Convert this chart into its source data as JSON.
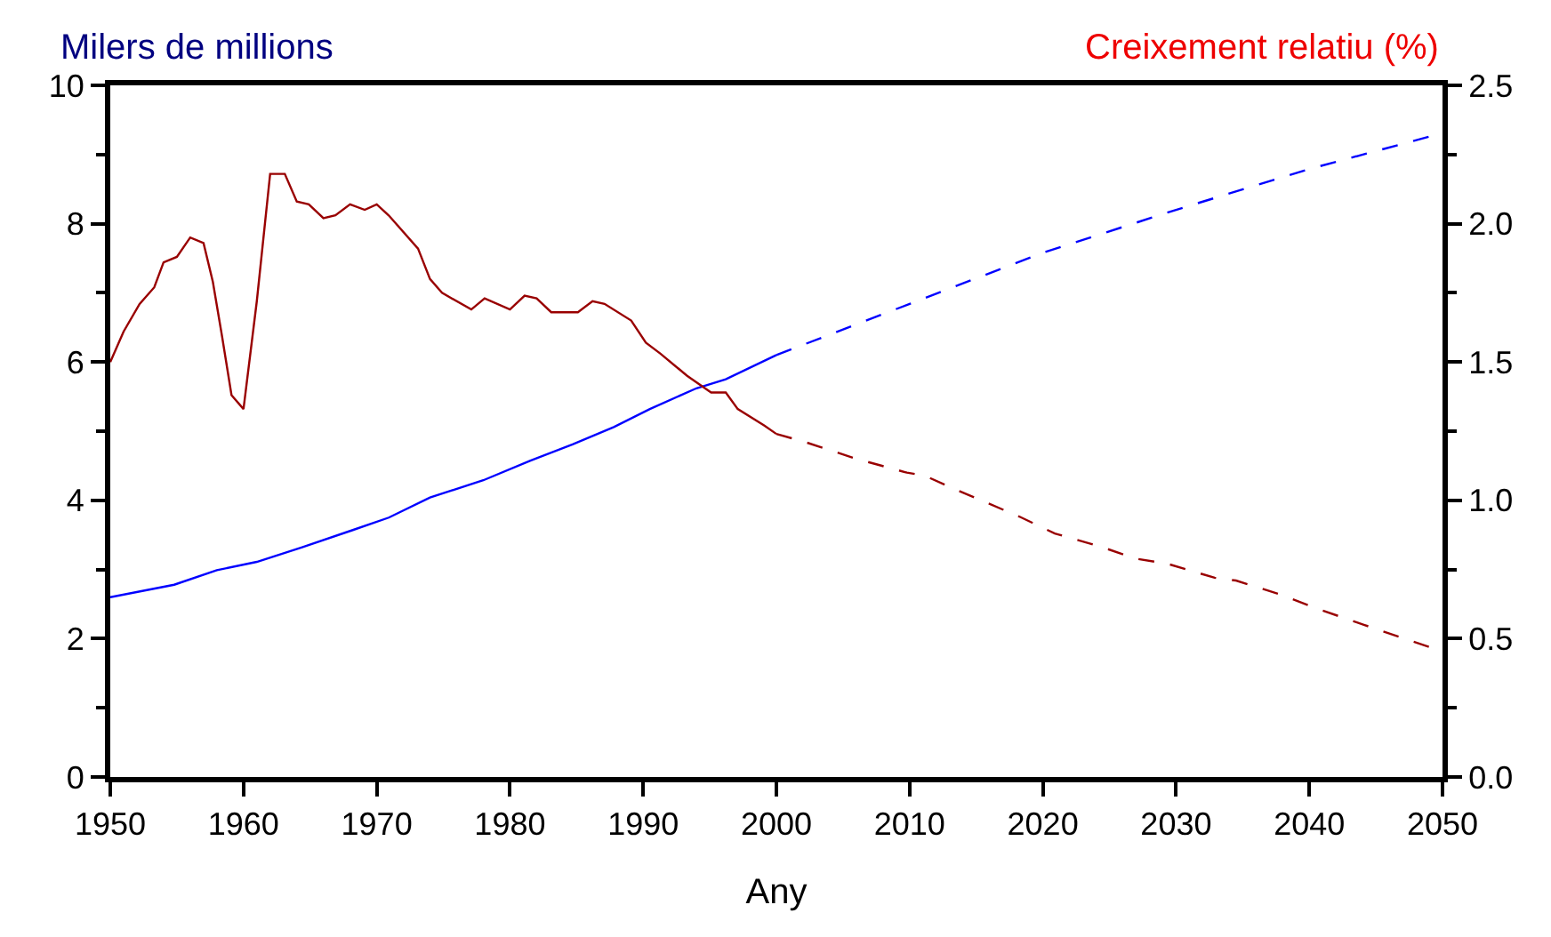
{
  "chart_data": {
    "type": "line",
    "xlabel": "Any",
    "ylabel": "Milers de millions",
    "y2label": "Creixement relatiu (%)",
    "xlim": [
      1950,
      2050
    ],
    "xticks": [
      1950,
      1960,
      1970,
      1980,
      1990,
      2000,
      2010,
      2020,
      2030,
      2040,
      2050
    ],
    "ylim": [
      0,
      10
    ],
    "yticks": [
      0,
      2,
      4,
      6,
      8,
      10
    ],
    "y2lim": [
      0,
      2.5
    ],
    "y2ticks": [
      {
        "value": 0,
        "label": "0.0"
      },
      {
        "value": 0.5,
        "label": "0.5"
      },
      {
        "value": 1,
        "label": "1.0"
      },
      {
        "value": 1.5,
        "label": "1.5"
      },
      {
        "value": 2,
        "label": "2.0"
      },
      {
        "value": 2.5,
        "label": "2.5"
      }
    ],
    "grid": false,
    "marker": "none",
    "series": [
      {
        "color": "#0000ff",
        "line_style": "solid",
        "x": [
          1950,
          1954.8,
          1958,
          1961,
          1964.4,
          1968.2,
          1970.9,
          1974,
          1978,
          1981.5,
          1984.7,
          1987.8,
          1990.5,
          1994,
          1996.2,
          2000
        ],
        "values": [
          2.6,
          2.78,
          2.99,
          3.11,
          3.32,
          3.57,
          3.75,
          4.04,
          4.29,
          4.57,
          4.81,
          5.06,
          5.32,
          5.62,
          5.75,
          6.1
        ]
      },
      {
        "color": "#0000ff",
        "line_style": "dashed",
        "x": [
          2000,
          2010,
          2020,
          2030,
          2040,
          2050
        ],
        "values": [
          6.1,
          6.84,
          7.58,
          8.2,
          8.79,
          9.31
        ]
      },
      {
        "color": "#990000",
        "line_style": "solid",
        "axis": "y2",
        "x": [
          1950,
          1951,
          1952.2,
          1953.3,
          1954,
          1955,
          1956,
          1957,
          1957.7,
          1958.4,
          1959.1,
          1960,
          1961,
          1962,
          1963.1,
          1964,
          1964.9,
          1966,
          1966.9,
          1968,
          1969.1,
          1970,
          1970.9,
          1973.1,
          1974,
          1974.9,
          1977.1,
          1978.1,
          1980,
          1981.1,
          1982,
          1983.1,
          1985.1,
          1986.2,
          1987.1,
          1989.1,
          1990.2,
          1991.3,
          1993.3,
          1995.1,
          1996.2,
          1997.1,
          1999.1,
          2000
        ],
        "values": [
          1.5,
          1.61,
          1.71,
          1.77,
          1.86,
          1.88,
          1.95,
          1.93,
          1.79,
          1.59,
          1.38,
          1.33,
          1.72,
          2.18,
          2.18,
          2.08,
          2.07,
          2.02,
          2.03,
          2.07,
          2.05,
          2.07,
          2.03,
          1.91,
          1.8,
          1.75,
          1.69,
          1.73,
          1.69,
          1.74,
          1.73,
          1.68,
          1.68,
          1.72,
          1.71,
          1.65,
          1.57,
          1.53,
          1.45,
          1.39,
          1.39,
          1.33,
          1.27,
          1.24
        ]
      },
      {
        "color": "#990000",
        "line_style": "dashed",
        "axis": "y2",
        "x": [
          2000,
          2002.2,
          2006,
          2009.8,
          2011.1,
          2013.4,
          2018.3,
          2020.9,
          2024.5,
          2026.9,
          2029.4,
          2032.9,
          2034.5,
          2037.8,
          2040.5,
          2044.1,
          2049,
          2050
        ],
        "values": [
          1.24,
          1.21,
          1.15,
          1.1,
          1.09,
          1.04,
          0.94,
          0.88,
          0.83,
          0.79,
          0.77,
          0.72,
          0.71,
          0.66,
          0.61,
          0.55,
          0.47,
          0.46
        ]
      }
    ]
  }
}
